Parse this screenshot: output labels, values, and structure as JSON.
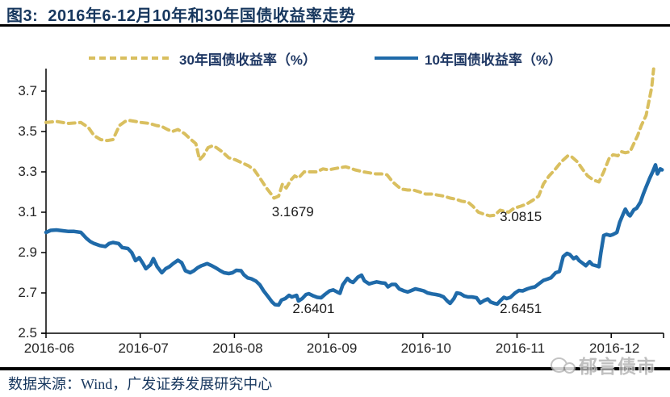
{
  "title": "图3:  2016年6-12月10年和30年国债收益率走势",
  "source_note": "数据来源：Wind，广发证券发展研究中心",
  "watermark": "郁言债市",
  "colors": {
    "line_30y": "#d9bf5f",
    "line_10y": "#1f6aa9",
    "title_text": "#17375e",
    "axis": "#000000",
    "axis_text": "#262626",
    "annotation_text": "#1a1a1a",
    "watermark_gray": "#b0b0b0"
  },
  "chart_data": {
    "type": "line",
    "title": "2016年6-12月10年和30年国债收益率走势",
    "xlabel": "",
    "ylabel": "",
    "x_unit": "month of 2016 (6.0 = 2016-06-01, 12.5 = mid Dec 2016)",
    "x_tick_labels": [
      "2016-06",
      "2016-07",
      "2016-08",
      "2016-09",
      "2016-10",
      "2016-11",
      "2016-12"
    ],
    "x_tick_positions": [
      6,
      7,
      8,
      9,
      10,
      11,
      12
    ],
    "xlim": [
      6,
      12.55
    ],
    "y_ticks": [
      "2.5",
      "2.7",
      "2.9",
      "3.1",
      "3.3",
      "3.5",
      "3.7"
    ],
    "y_tick_values": [
      2.5,
      2.7,
      2.9,
      3.1,
      3.3,
      3.5,
      3.7
    ],
    "ylim": [
      2.5,
      3.82
    ],
    "grid": false,
    "legend_position": "top",
    "series": [
      {
        "name": "30年国债收益率（%）",
        "style": "dashed",
        "color": "#d9bf5f",
        "points": [
          [
            6.0,
            3.545
          ],
          [
            6.11,
            3.55
          ],
          [
            6.24,
            3.54
          ],
          [
            6.37,
            3.545
          ],
          [
            6.45,
            3.52
          ],
          [
            6.51,
            3.48
          ],
          [
            6.58,
            3.46
          ],
          [
            6.65,
            3.455
          ],
          [
            6.71,
            3.46
          ],
          [
            6.78,
            3.53
          ],
          [
            6.84,
            3.55
          ],
          [
            6.88,
            3.555
          ],
          [
            6.95,
            3.55
          ],
          [
            7.01,
            3.545
          ],
          [
            7.1,
            3.54
          ],
          [
            7.17,
            3.53
          ],
          [
            7.23,
            3.525
          ],
          [
            7.29,
            3.51
          ],
          [
            7.34,
            3.5
          ],
          [
            7.4,
            3.51
          ],
          [
            7.47,
            3.49
          ],
          [
            7.54,
            3.46
          ],
          [
            7.59,
            3.44
          ],
          [
            7.63,
            3.36
          ],
          [
            7.67,
            3.38
          ],
          [
            7.72,
            3.42
          ],
          [
            7.77,
            3.43
          ],
          [
            7.81,
            3.42
          ],
          [
            7.87,
            3.4
          ],
          [
            7.94,
            3.37
          ],
          [
            8.01,
            3.36
          ],
          [
            8.08,
            3.345
          ],
          [
            8.15,
            3.33
          ],
          [
            8.21,
            3.31
          ],
          [
            8.27,
            3.27
          ],
          [
            8.34,
            3.22
          ],
          [
            8.39,
            3.19
          ],
          [
            8.42,
            3.17
          ],
          [
            8.47,
            3.18
          ],
          [
            8.51,
            3.24
          ],
          [
            8.55,
            3.22
          ],
          [
            8.6,
            3.26
          ],
          [
            8.64,
            3.28
          ],
          [
            8.68,
            3.27
          ],
          [
            8.74,
            3.3
          ],
          [
            8.81,
            3.3
          ],
          [
            8.87,
            3.3
          ],
          [
            8.94,
            3.315
          ],
          [
            9.0,
            3.31
          ],
          [
            9.05,
            3.315
          ],
          [
            9.11,
            3.32
          ],
          [
            9.18,
            3.325
          ],
          [
            9.22,
            3.32
          ],
          [
            9.28,
            3.31
          ],
          [
            9.37,
            3.3
          ],
          [
            9.44,
            3.295
          ],
          [
            9.5,
            3.29
          ],
          [
            9.56,
            3.29
          ],
          [
            9.62,
            3.285
          ],
          [
            9.68,
            3.25
          ],
          [
            9.73,
            3.23
          ],
          [
            9.77,
            3.215
          ],
          [
            9.84,
            3.21
          ],
          [
            9.9,
            3.21
          ],
          [
            9.97,
            3.2
          ],
          [
            10.03,
            3.19
          ],
          [
            10.1,
            3.19
          ],
          [
            10.16,
            3.185
          ],
          [
            10.22,
            3.18
          ],
          [
            10.29,
            3.17
          ],
          [
            10.35,
            3.165
          ],
          [
            10.41,
            3.155
          ],
          [
            10.48,
            3.15
          ],
          [
            10.53,
            3.13
          ],
          [
            10.59,
            3.1
          ],
          [
            10.65,
            3.09
          ],
          [
            10.71,
            3.082
          ],
          [
            10.76,
            3.085
          ],
          [
            10.82,
            3.11
          ],
          [
            10.87,
            3.105
          ],
          [
            10.91,
            3.1
          ],
          [
            10.97,
            3.12
          ],
          [
            11.04,
            3.13
          ],
          [
            11.1,
            3.14
          ],
          [
            11.17,
            3.16
          ],
          [
            11.23,
            3.18
          ],
          [
            11.28,
            3.24
          ],
          [
            11.34,
            3.28
          ],
          [
            11.4,
            3.31
          ],
          [
            11.47,
            3.35
          ],
          [
            11.54,
            3.38
          ],
          [
            11.58,
            3.375
          ],
          [
            11.64,
            3.35
          ],
          [
            11.7,
            3.31
          ],
          [
            11.75,
            3.28
          ],
          [
            11.81,
            3.26
          ],
          [
            11.87,
            3.25
          ],
          [
            11.92,
            3.3
          ],
          [
            11.98,
            3.37
          ],
          [
            12.02,
            3.385
          ],
          [
            12.07,
            3.38
          ],
          [
            12.11,
            3.4
          ],
          [
            12.15,
            3.395
          ],
          [
            12.2,
            3.4
          ],
          [
            12.24,
            3.44
          ],
          [
            12.28,
            3.48
          ],
          [
            12.32,
            3.53
          ],
          [
            12.37,
            3.58
          ],
          [
            12.4,
            3.65
          ],
          [
            12.43,
            3.72
          ],
          [
            12.45,
            3.81
          ]
        ]
      },
      {
        "name": "10年国债收益率（%）",
        "style": "solid",
        "color": "#1f6aa9",
        "points": [
          [
            6.0,
            3.0
          ],
          [
            6.05,
            3.01
          ],
          [
            6.11,
            3.012
          ],
          [
            6.18,
            3.008
          ],
          [
            6.24,
            3.005
          ],
          [
            6.3,
            3.005
          ],
          [
            6.37,
            3.0
          ],
          [
            6.43,
            2.97
          ],
          [
            6.47,
            2.955
          ],
          [
            6.51,
            2.945
          ],
          [
            6.57,
            2.935
          ],
          [
            6.63,
            2.93
          ],
          [
            6.67,
            2.945
          ],
          [
            6.71,
            2.95
          ],
          [
            6.77,
            2.945
          ],
          [
            6.81,
            2.925
          ],
          [
            6.87,
            2.92
          ],
          [
            6.91,
            2.9
          ],
          [
            6.95,
            2.86
          ],
          [
            6.99,
            2.875
          ],
          [
            7.03,
            2.845
          ],
          [
            7.06,
            2.82
          ],
          [
            7.11,
            2.84
          ],
          [
            7.14,
            2.87
          ],
          [
            7.18,
            2.83
          ],
          [
            7.23,
            2.8
          ],
          [
            7.27,
            2.82
          ],
          [
            7.31,
            2.83
          ],
          [
            7.35,
            2.845
          ],
          [
            7.4,
            2.862
          ],
          [
            7.44,
            2.85
          ],
          [
            7.48,
            2.81
          ],
          [
            7.53,
            2.8
          ],
          [
            7.57,
            2.81
          ],
          [
            7.61,
            2.825
          ],
          [
            7.65,
            2.835
          ],
          [
            7.71,
            2.845
          ],
          [
            7.76,
            2.835
          ],
          [
            7.81,
            2.822
          ],
          [
            7.85,
            2.81
          ],
          [
            7.89,
            2.8
          ],
          [
            7.94,
            2.796
          ],
          [
            7.98,
            2.8
          ],
          [
            8.02,
            2.812
          ],
          [
            8.07,
            2.81
          ],
          [
            8.1,
            2.79
          ],
          [
            8.14,
            2.775
          ],
          [
            8.18,
            2.77
          ],
          [
            8.23,
            2.758
          ],
          [
            8.27,
            2.74
          ],
          [
            8.31,
            2.71
          ],
          [
            8.36,
            2.68
          ],
          [
            8.4,
            2.655
          ],
          [
            8.43,
            2.642
          ],
          [
            8.47,
            2.64
          ],
          [
            8.5,
            2.665
          ],
          [
            8.54,
            2.672
          ],
          [
            8.58,
            2.688
          ],
          [
            8.61,
            2.68
          ],
          [
            8.66,
            2.688
          ],
          [
            8.68,
            2.66
          ],
          [
            8.72,
            2.672
          ],
          [
            8.76,
            2.692
          ],
          [
            8.79,
            2.696
          ],
          [
            8.84,
            2.685
          ],
          [
            8.88,
            2.678
          ],
          [
            8.92,
            2.676
          ],
          [
            8.96,
            2.692
          ],
          [
            9.01,
            2.71
          ],
          [
            9.05,
            2.715
          ],
          [
            9.09,
            2.705
          ],
          [
            9.12,
            2.698
          ],
          [
            9.15,
            2.74
          ],
          [
            9.2,
            2.772
          ],
          [
            9.23,
            2.758
          ],
          [
            9.26,
            2.752
          ],
          [
            9.31,
            2.778
          ],
          [
            9.35,
            2.788
          ],
          [
            9.38,
            2.76
          ],
          [
            9.43,
            2.745
          ],
          [
            9.47,
            2.75
          ],
          [
            9.51,
            2.755
          ],
          [
            9.56,
            2.75
          ],
          [
            9.6,
            2.748
          ],
          [
            9.63,
            2.73
          ],
          [
            9.67,
            2.742
          ],
          [
            9.71,
            2.742
          ],
          [
            9.75,
            2.72
          ],
          [
            9.8,
            2.71
          ],
          [
            9.84,
            2.705
          ],
          [
            9.88,
            2.712
          ],
          [
            9.92,
            2.72
          ],
          [
            9.97,
            2.715
          ],
          [
            10.01,
            2.71
          ],
          [
            10.05,
            2.7
          ],
          [
            10.1,
            2.695
          ],
          [
            10.14,
            2.692
          ],
          [
            10.18,
            2.688
          ],
          [
            10.22,
            2.68
          ],
          [
            10.26,
            2.66
          ],
          [
            10.29,
            2.648
          ],
          [
            10.33,
            2.672
          ],
          [
            10.36,
            2.7
          ],
          [
            10.4,
            2.696
          ],
          [
            10.44,
            2.685
          ],
          [
            10.48,
            2.68
          ],
          [
            10.52,
            2.68
          ],
          [
            10.57,
            2.676
          ],
          [
            10.61,
            2.65
          ],
          [
            10.65,
            2.662
          ],
          [
            10.69,
            2.67
          ],
          [
            10.72,
            2.655
          ],
          [
            10.76,
            2.648
          ],
          [
            10.79,
            2.645
          ],
          [
            10.82,
            2.66
          ],
          [
            10.86,
            2.678
          ],
          [
            10.89,
            2.672
          ],
          [
            10.93,
            2.678
          ],
          [
            10.98,
            2.7
          ],
          [
            11.02,
            2.712
          ],
          [
            11.06,
            2.71
          ],
          [
            11.11,
            2.72
          ],
          [
            11.15,
            2.726
          ],
          [
            11.19,
            2.73
          ],
          [
            11.24,
            2.748
          ],
          [
            11.28,
            2.762
          ],
          [
            11.32,
            2.768
          ],
          [
            11.36,
            2.775
          ],
          [
            11.41,
            2.8
          ],
          [
            11.45,
            2.806
          ],
          [
            11.49,
            2.88
          ],
          [
            11.53,
            2.896
          ],
          [
            11.56,
            2.89
          ],
          [
            11.6,
            2.87
          ],
          [
            11.63,
            2.878
          ],
          [
            11.66,
            2.86
          ],
          [
            11.7,
            2.846
          ],
          [
            11.73,
            2.835
          ],
          [
            11.77,
            2.855
          ],
          [
            11.8,
            2.84
          ],
          [
            11.84,
            2.835
          ],
          [
            11.87,
            2.83
          ],
          [
            11.89,
            2.9
          ],
          [
            11.92,
            2.985
          ],
          [
            11.95,
            2.99
          ],
          [
            11.99,
            2.985
          ],
          [
            12.02,
            2.99
          ],
          [
            12.06,
            3.0
          ],
          [
            12.09,
            3.05
          ],
          [
            12.13,
            3.095
          ],
          [
            12.15,
            3.115
          ],
          [
            12.18,
            3.09
          ],
          [
            12.2,
            3.082
          ],
          [
            12.24,
            3.112
          ],
          [
            12.27,
            3.12
          ],
          [
            12.31,
            3.15
          ],
          [
            12.34,
            3.19
          ],
          [
            12.37,
            3.225
          ],
          [
            12.41,
            3.27
          ],
          [
            12.44,
            3.3
          ],
          [
            12.47,
            3.335
          ],
          [
            12.49,
            3.29
          ],
          [
            12.52,
            3.315
          ],
          [
            12.54,
            3.31
          ]
        ]
      }
    ],
    "annotations": [
      {
        "text": "3.1679",
        "x": 8.62,
        "y": 3.1
      },
      {
        "text": "2.6401",
        "x": 8.84,
        "y": 2.62
      },
      {
        "text": "3.0815",
        "x": 11.04,
        "y": 3.076
      },
      {
        "text": "2.6451",
        "x": 11.04,
        "y": 2.62
      }
    ]
  }
}
